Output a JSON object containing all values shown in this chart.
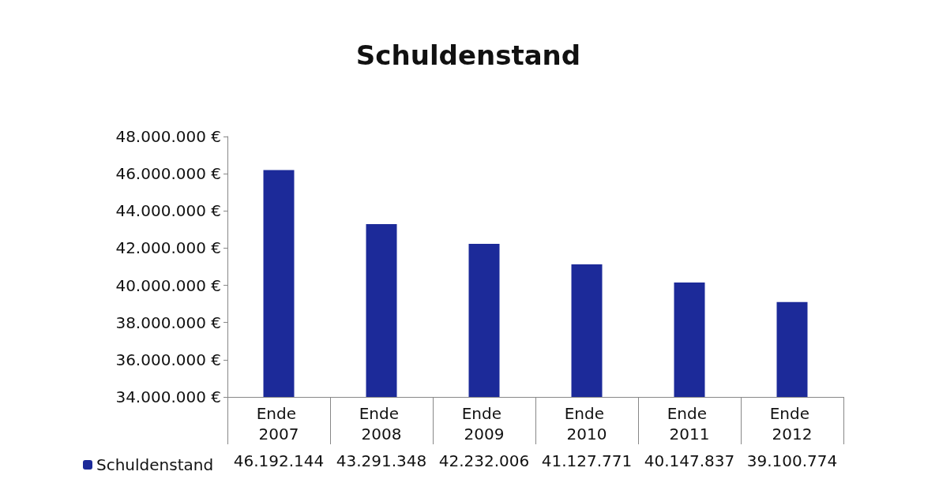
{
  "chart_data": {
    "type": "bar",
    "title": "Schuldenstand",
    "categories": [
      "Ende 2007",
      "Ende 2008",
      "Ende 2009",
      "Ende 2010",
      "Ende 2011",
      "Ende 2012"
    ],
    "series": [
      {
        "name": "Schuldenstand",
        "color": "#1c2a99",
        "values": [
          46192144,
          43291348,
          42232006,
          41127771,
          40147837,
          39100774
        ],
        "value_labels": [
          "46.192.144",
          "43.291.348",
          "42.232.006",
          "41.127.771",
          "40.147.837",
          "39.100.774"
        ]
      }
    ],
    "ylim": [
      34000000,
      48000000
    ],
    "yticks": [
      {
        "value": 34000000,
        "label": "34.000.000 €"
      },
      {
        "value": 36000000,
        "label": "36.000.000 €"
      },
      {
        "value": 38000000,
        "label": "38.000.000 €"
      },
      {
        "value": 40000000,
        "label": "40.000.000 €"
      },
      {
        "value": 42000000,
        "label": "42.000.000 €"
      },
      {
        "value": 44000000,
        "label": "44.000.000 €"
      },
      {
        "value": 46000000,
        "label": "46.000.000 €"
      },
      {
        "value": 48000000,
        "label": "48.000.000 €"
      }
    ],
    "legend": "bottom left"
  }
}
